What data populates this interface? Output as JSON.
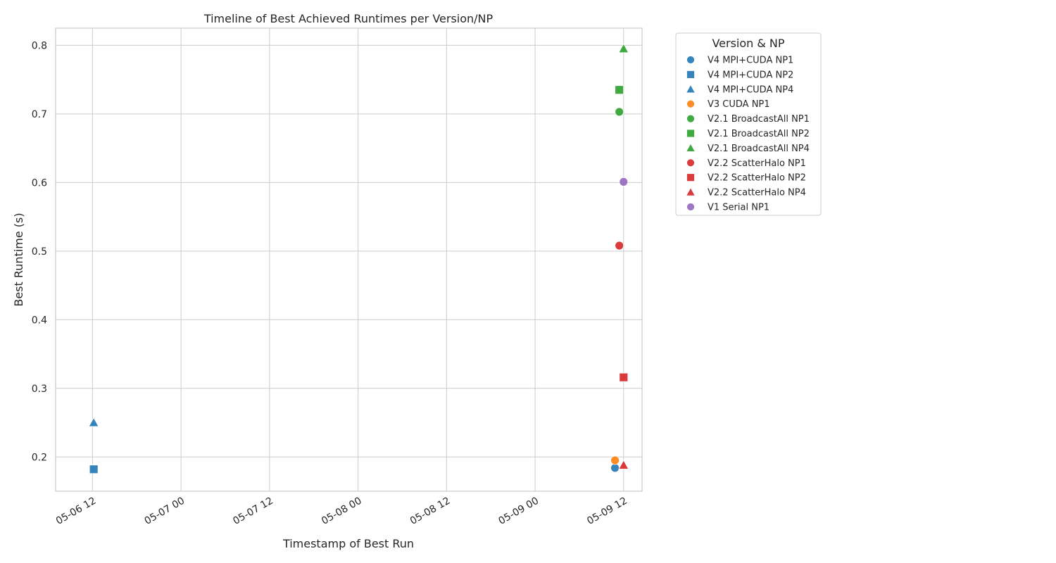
{
  "chart_data": {
    "type": "scatter",
    "title": "Timeline of Best Achieved Runtimes per Version/NP",
    "xlabel": "Timestamp of Best Run",
    "ylabel": "Best Runtime (s)",
    "x_is_datetime": true,
    "xlim": [
      "2025-05-06T07:00",
      "2025-05-09T14:30"
    ],
    "ylim": [
      0.15,
      0.825
    ],
    "x_ticks": [
      {
        "value": "2025-05-06T12:00",
        "label": "05-06 12"
      },
      {
        "value": "2025-05-07T00:00",
        "label": "05-07 00"
      },
      {
        "value": "2025-05-07T12:00",
        "label": "05-07 12"
      },
      {
        "value": "2025-05-08T00:00",
        "label": "05-08 00"
      },
      {
        "value": "2025-05-08T12:00",
        "label": "05-08 12"
      },
      {
        "value": "2025-05-09T00:00",
        "label": "05-09 00"
      },
      {
        "value": "2025-05-09T12:00",
        "label": "05-09 12"
      }
    ],
    "y_ticks": [
      {
        "value": 0.2,
        "label": "0.2"
      },
      {
        "value": 0.3,
        "label": "0.3"
      },
      {
        "value": 0.4,
        "label": "0.4"
      },
      {
        "value": 0.5,
        "label": "0.5"
      },
      {
        "value": 0.6,
        "label": "0.6"
      },
      {
        "value": 0.7,
        "label": "0.7"
      },
      {
        "value": 0.8,
        "label": "0.8"
      }
    ],
    "grid": true,
    "legend": {
      "title": "Version & NP",
      "placement": "outside-right"
    },
    "series": [
      {
        "name": "V4 MPI+CUDA NP1",
        "color": "#1f77b4",
        "marker": "circle",
        "points": [
          {
            "x": "2025-05-09T10:50",
            "y": 0.184
          }
        ]
      },
      {
        "name": "V4 MPI+CUDA NP2",
        "color": "#1f77b4",
        "marker": "square",
        "points": [
          {
            "x": "2025-05-06T12:10",
            "y": 0.182
          }
        ]
      },
      {
        "name": "V4 MPI+CUDA NP4",
        "color": "#1f77b4",
        "marker": "triangle",
        "points": [
          {
            "x": "2025-05-06T12:10",
            "y": 0.25
          }
        ]
      },
      {
        "name": "V3 CUDA NP1",
        "color": "#ff7f0e",
        "marker": "circle",
        "points": [
          {
            "x": "2025-05-09T10:50",
            "y": 0.195
          }
        ]
      },
      {
        "name": "V2.1 BroadcastAll NP1",
        "color": "#2ca02c",
        "marker": "circle",
        "points": [
          {
            "x": "2025-05-09T11:25",
            "y": 0.703
          }
        ]
      },
      {
        "name": "V2.1 BroadcastAll NP2",
        "color": "#2ca02c",
        "marker": "square",
        "points": [
          {
            "x": "2025-05-09T11:25",
            "y": 0.735
          }
        ]
      },
      {
        "name": "V2.1 BroadcastAll NP4",
        "color": "#2ca02c",
        "marker": "triangle",
        "points": [
          {
            "x": "2025-05-09T12:00",
            "y": 0.795
          }
        ]
      },
      {
        "name": "V2.2 ScatterHalo NP1",
        "color": "#d62728",
        "marker": "circle",
        "points": [
          {
            "x": "2025-05-09T11:25",
            "y": 0.508
          }
        ]
      },
      {
        "name": "V2.2 ScatterHalo NP2",
        "color": "#d62728",
        "marker": "square",
        "points": [
          {
            "x": "2025-05-09T12:00",
            "y": 0.316
          }
        ]
      },
      {
        "name": "V2.2 ScatterHalo NP4",
        "color": "#d62728",
        "marker": "triangle",
        "points": [
          {
            "x": "2025-05-09T12:00",
            "y": 0.188
          }
        ]
      },
      {
        "name": "V1 Serial NP1",
        "color": "#9467bd",
        "marker": "circle",
        "points": [
          {
            "x": "2025-05-09T12:00",
            "y": 0.601
          }
        ]
      }
    ]
  }
}
